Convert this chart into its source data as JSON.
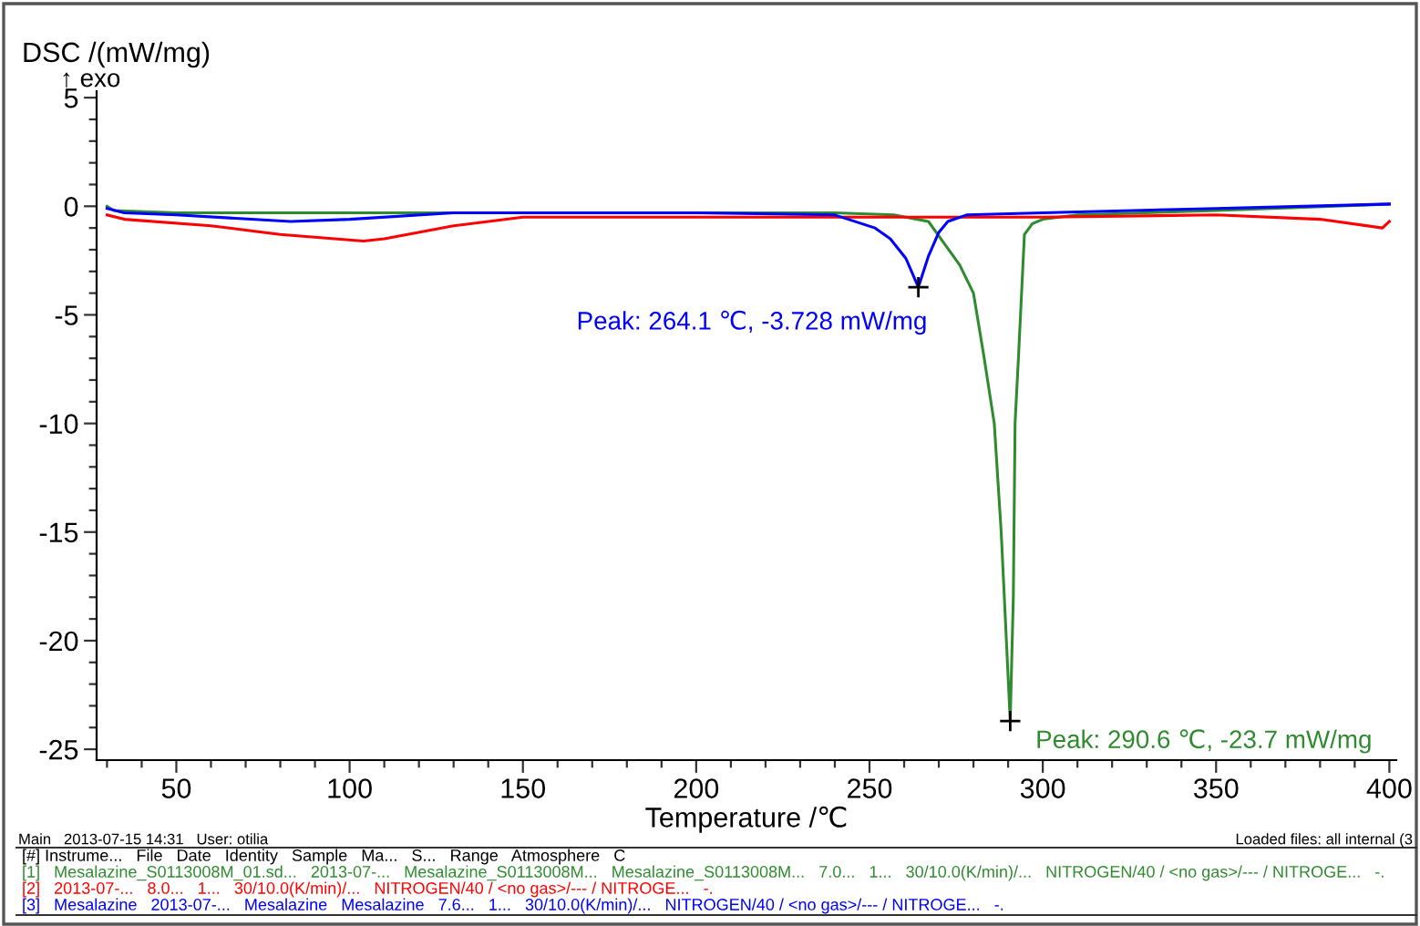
{
  "chart_data": {
    "type": "line",
    "xlabel": "Temperature /℃",
    "ylabel": "DSC /(mW/mg)",
    "xlim": [
      27,
      402
    ],
    "ylim": [
      -25.5,
      5.3
    ],
    "xticks": [
      {
        "value": 30,
        "label": null
      },
      {
        "value": 40,
        "label": null
      },
      50,
      {
        "value": 60,
        "label": null
      },
      {
        "value": 70,
        "label": null
      },
      {
        "value": 80,
        "label": null
      },
      {
        "value": 90,
        "label": null
      },
      100,
      {
        "value": 110,
        "label": null
      },
      {
        "value": 120,
        "label": null
      },
      {
        "value": 130,
        "label": null
      },
      {
        "value": 140,
        "label": null
      },
      150,
      {
        "value": 160,
        "label": null
      },
      {
        "value": 170,
        "label": null
      },
      {
        "value": 180,
        "label": null
      },
      {
        "value": 190,
        "label": null
      },
      200,
      {
        "value": 210,
        "label": null
      },
      {
        "value": 220,
        "label": null
      },
      {
        "value": 230,
        "label": null
      },
      {
        "value": 240,
        "label": null
      },
      250,
      {
        "value": 260,
        "label": null
      },
      {
        "value": 270,
        "label": null
      },
      {
        "value": 280,
        "label": null
      },
      {
        "value": 290,
        "label": null
      },
      300,
      {
        "value": 310,
        "label": null
      },
      {
        "value": 320,
        "label": null
      },
      {
        "value": 330,
        "label": null
      },
      {
        "value": 340,
        "label": null
      },
      350,
      {
        "value": 360,
        "label": null
      },
      {
        "value": 370,
        "label": null
      },
      {
        "value": 380,
        "label": null
      },
      {
        "value": 390,
        "label": null
      },
      400
    ],
    "yticks": [
      -25,
      {
        "value": -24,
        "label": null
      },
      {
        "value": -23,
        "label": null
      },
      {
        "value": -22,
        "label": null
      },
      {
        "value": -21,
        "label": null
      },
      -20,
      {
        "value": -19,
        "label": null
      },
      {
        "value": -18,
        "label": null
      },
      {
        "value": -17,
        "label": null
      },
      {
        "value": -16,
        "label": null
      },
      -15,
      {
        "value": -14,
        "label": null
      },
      {
        "value": -13,
        "label": null
      },
      {
        "value": -12,
        "label": null
      },
      {
        "value": -11,
        "label": null
      },
      -10,
      {
        "value": -9,
        "label": null
      },
      {
        "value": -8,
        "label": null
      },
      {
        "value": -7,
        "label": null
      },
      {
        "value": -6,
        "label": null
      },
      -5,
      {
        "value": -4,
        "label": null
      },
      {
        "value": -3,
        "label": null
      },
      {
        "value": -2,
        "label": null
      },
      {
        "value": -1,
        "label": null
      },
      0,
      {
        "value": 1,
        "label": null
      },
      {
        "value": 2,
        "label": null
      },
      {
        "value": 3,
        "label": null
      },
      {
        "value": 4,
        "label": null
      },
      5
    ],
    "grid": false,
    "legend": false,
    "marker": "none",
    "line_style": "solid",
    "series": [
      {
        "color": "#2e8b2e",
        "x": [
          30,
          32,
          50,
          100,
          150,
          200,
          240,
          257,
          267,
          276,
          280,
          283,
          286,
          288,
          289.5,
          290.6,
          291.5,
          292,
          293,
          294.7,
          297,
          300,
          310,
          350,
          400
        ],
        "values": [
          0,
          -0.2,
          -0.3,
          -0.3,
          -0.3,
          -0.3,
          -0.3,
          -0.4,
          -0.7,
          -2.7,
          -4,
          -6.9,
          -10,
          -15,
          -20,
          -23.7,
          -18,
          -10,
          -6.9,
          -1.3,
          -0.8,
          -0.6,
          -0.4,
          -0.2,
          0.1
        ]
      },
      {
        "color": "#ff0000",
        "x": [
          30,
          35,
          60,
          80,
          104,
          110,
          130,
          150,
          200,
          250,
          300,
          350,
          380,
          398,
          400
        ],
        "values": [
          -0.4,
          -0.6,
          -0.9,
          -1.3,
          -1.6,
          -1.5,
          -0.9,
          -0.5,
          -0.5,
          -0.5,
          -0.5,
          -0.4,
          -0.6,
          -1.0,
          -0.7
        ]
      },
      {
        "color": "#0000ff",
        "x": [
          30,
          35,
          50,
          83,
          100,
          130,
          200,
          240,
          251.6,
          256,
          260.5,
          264.1,
          267,
          270,
          272.6,
          278,
          300,
          350,
          400
        ],
        "values": [
          -0.1,
          -0.3,
          -0.4,
          -0.7,
          -0.6,
          -0.3,
          -0.3,
          -0.4,
          -1.0,
          -1.5,
          -2.4,
          -3.728,
          -2.3,
          -1.2,
          -0.7,
          -0.4,
          -0.3,
          -0.1,
          0.1
        ]
      }
    ],
    "annotations": [
      {
        "text": "Peak: 264.1 ℃, -3.728 mW/mg",
        "x": 264.1,
        "y": -3.728
      },
      {
        "text": "Peak: 290.6 ℃, -23.7 mW/mg",
        "x": 290.6,
        "y": -23.7
      },
      "↑ exo",
      "Main   2013-07-15 14:31   User: otilia",
      "Loaded files: all internal (3",
      "[#] Instrume...   File   Date   Identity   Sample   Ma...   S...   Range   Atmosphere   C",
      "[1]   Mesalazine_S0113008M_01.sd...   2013-07-...   Mesalazine_S0113008M...   Mesalazine_S0113008M...   7.0...   1...   30/10.0(K/min)/...   NITROGEN/40 / <no gas>/--- / NITROGE...   -.",
      "[2]   2013-07-...   8.0...   1...   30/10.0(K/min)/...   NITROGEN/40 / <no gas>/--- / NITROGE...   -.",
      "[3]   Mesalazine   2013-07-...   Mesalazine   Mesalazine   7.6...   1...   30/10.0(K/min)/...   NITROGEN/40 / <no gas>/--- / NITROGE...   -."
    ]
  }
}
